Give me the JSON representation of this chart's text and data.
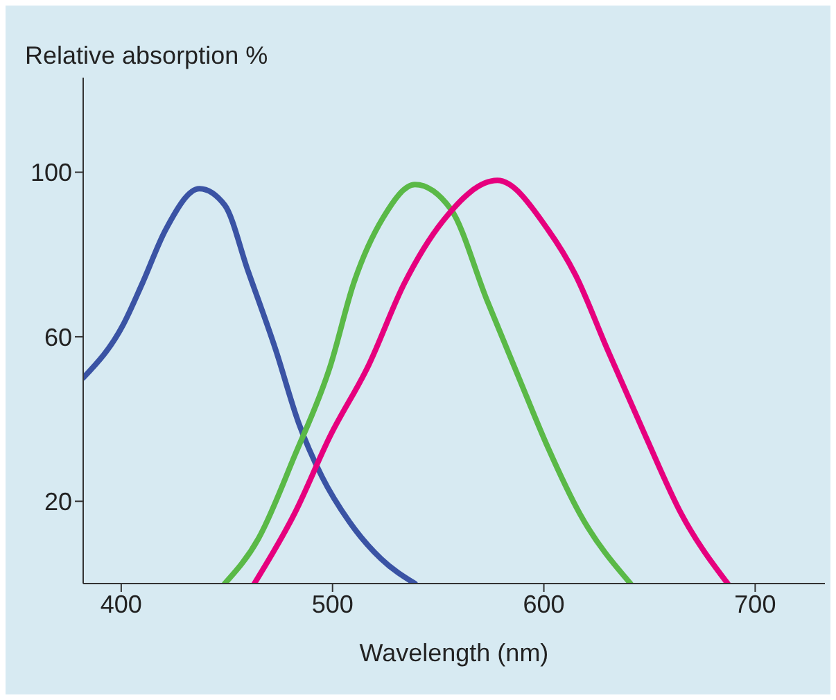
{
  "chart_data": {
    "type": "line",
    "xlabel": "Wavelength (nm)",
    "ylabel": "Relative absorption %",
    "xlim": [
      382,
      733
    ],
    "xticks": [
      400,
      500,
      600,
      700
    ],
    "ylim": [
      0,
      123
    ],
    "yticks": [
      20,
      60,
      100
    ],
    "series": [
      {
        "color": "#3a53a4",
        "x": [
          382,
          401,
          410,
          421,
          437,
          449,
          460,
          473,
          484,
          495,
          508,
          523,
          539
        ],
        "values": [
          50,
          63,
          73,
          86,
          96,
          92,
          76,
          57,
          39,
          26,
          15,
          6,
          0
        ]
      },
      {
        "color": "#5ab947",
        "x": [
          449,
          465,
          482,
          499,
          510,
          524,
          539,
          556,
          573,
          589,
          602,
          617,
          641
        ],
        "values": [
          0,
          11,
          31,
          53,
          73,
          89,
          97,
          91,
          69,
          49,
          33,
          17,
          0
        ]
      },
      {
        "color": "#e6007e",
        "x": [
          463,
          482,
          499,
          517,
          534,
          552,
          578,
          602,
          615,
          630,
          648,
          665,
          687
        ],
        "values": [
          0,
          17,
          36,
          53,
          73,
          88,
          98,
          86,
          75,
          57,
          36,
          17,
          0
        ]
      }
    ]
  }
}
